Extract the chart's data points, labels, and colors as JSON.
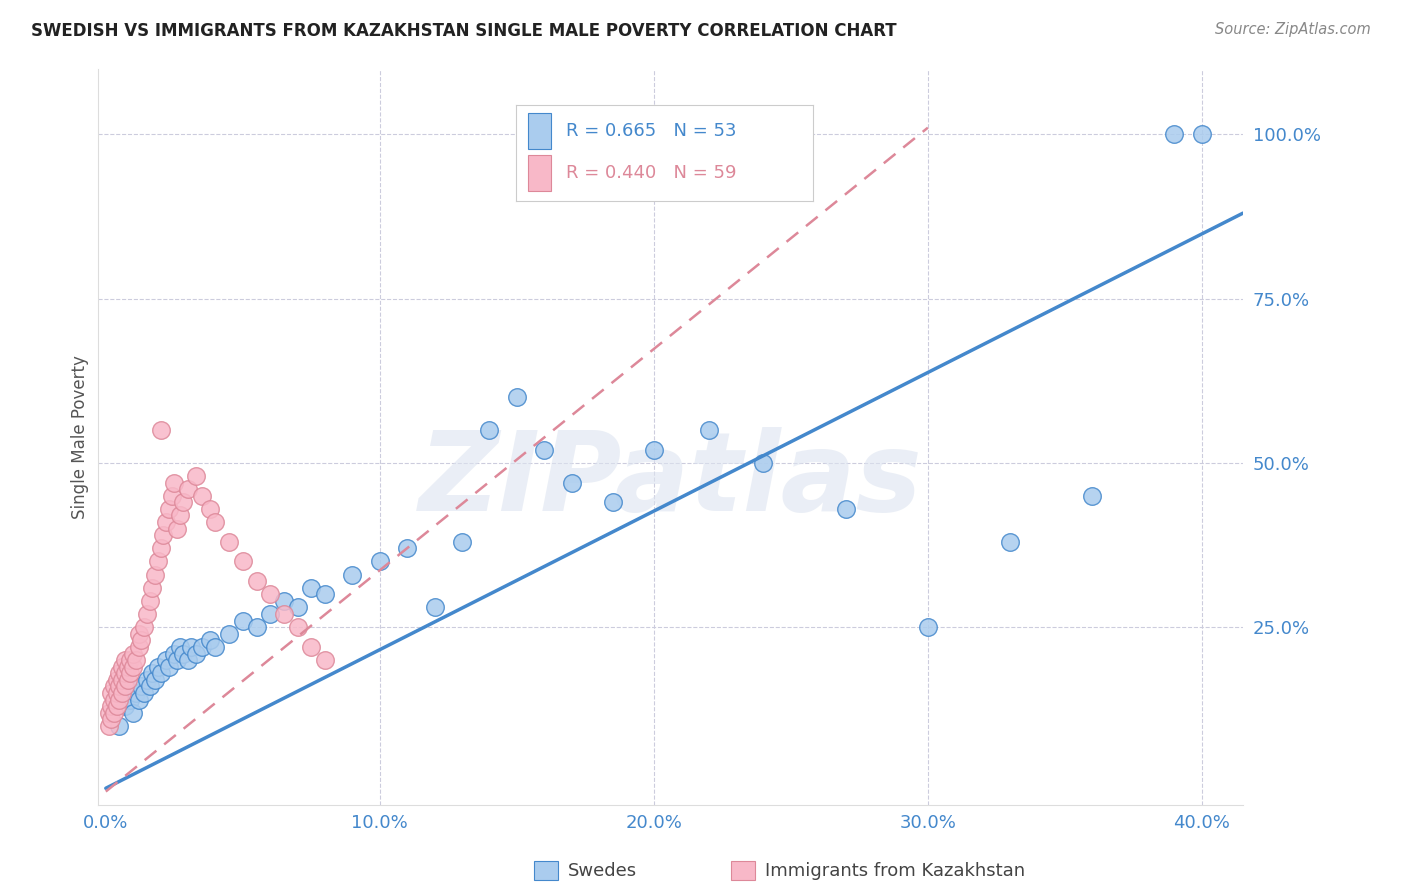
{
  "title": "SWEDISH VS IMMIGRANTS FROM KAZAKHSTAN SINGLE MALE POVERTY CORRELATION CHART",
  "source": "Source: ZipAtlas.com",
  "ylabel": "Single Male Poverty",
  "x_tick_labels": [
    "0.0%",
    "10.0%",
    "20.0%",
    "30.0%",
    "40.0%"
  ],
  "x_tick_vals": [
    0.0,
    0.1,
    0.2,
    0.3,
    0.4
  ],
  "y_tick_labels": [
    "25.0%",
    "50.0%",
    "75.0%",
    "100.0%"
  ],
  "y_tick_vals": [
    0.25,
    0.5,
    0.75,
    1.0
  ],
  "xlim": [
    -0.003,
    0.415
  ],
  "ylim": [
    -0.02,
    1.1
  ],
  "blue_R": 0.665,
  "blue_N": 53,
  "pink_R": 0.44,
  "pink_N": 59,
  "blue_scatter_color": "#aaccee",
  "pink_scatter_color": "#f8b8c8",
  "blue_line_color": "#4488cc",
  "pink_line_color": "#dd8899",
  "legend_label_blue": "Swedes",
  "legend_label_pink": "Immigrants from Kazakhstan",
  "watermark_text": "ZIPatlas",
  "title_color": "#222222",
  "source_color": "#888888",
  "axis_label_color": "#555555",
  "tick_color": "#4488cc",
  "grid_color": "#ccccdd",
  "blue_line_x0": 0.0,
  "blue_line_y0": 0.005,
  "blue_line_x1": 0.415,
  "blue_line_y1": 0.88,
  "pink_line_x0": 0.0,
  "pink_line_y0": 0.0,
  "pink_line_x1": 0.3,
  "pink_line_y1": 1.01,
  "swedes_x": [
    0.005,
    0.007,
    0.009,
    0.01,
    0.011,
    0.012,
    0.013,
    0.014,
    0.015,
    0.016,
    0.017,
    0.018,
    0.019,
    0.02,
    0.022,
    0.023,
    0.025,
    0.026,
    0.027,
    0.028,
    0.03,
    0.031,
    0.033,
    0.035,
    0.038,
    0.04,
    0.045,
    0.05,
    0.055,
    0.06,
    0.065,
    0.07,
    0.075,
    0.08,
    0.09,
    0.1,
    0.11,
    0.12,
    0.13,
    0.14,
    0.15,
    0.16,
    0.17,
    0.185,
    0.2,
    0.22,
    0.24,
    0.27,
    0.3,
    0.33,
    0.36,
    0.39,
    0.4
  ],
  "swedes_y": [
    0.1,
    0.13,
    0.14,
    0.12,
    0.15,
    0.14,
    0.16,
    0.15,
    0.17,
    0.16,
    0.18,
    0.17,
    0.19,
    0.18,
    0.2,
    0.19,
    0.21,
    0.2,
    0.22,
    0.21,
    0.2,
    0.22,
    0.21,
    0.22,
    0.23,
    0.22,
    0.24,
    0.26,
    0.25,
    0.27,
    0.29,
    0.28,
    0.31,
    0.3,
    0.33,
    0.35,
    0.37,
    0.28,
    0.38,
    0.55,
    0.6,
    0.52,
    0.47,
    0.44,
    0.52,
    0.55,
    0.5,
    0.43,
    0.25,
    0.38,
    0.45,
    1.0,
    1.0
  ],
  "kaz_x": [
    0.001,
    0.001,
    0.002,
    0.002,
    0.002,
    0.003,
    0.003,
    0.003,
    0.004,
    0.004,
    0.004,
    0.005,
    0.005,
    0.005,
    0.006,
    0.006,
    0.006,
    0.007,
    0.007,
    0.007,
    0.008,
    0.008,
    0.009,
    0.009,
    0.01,
    0.01,
    0.011,
    0.012,
    0.012,
    0.013,
    0.014,
    0.015,
    0.016,
    0.017,
    0.018,
    0.019,
    0.02,
    0.021,
    0.022,
    0.023,
    0.024,
    0.025,
    0.026,
    0.027,
    0.028,
    0.03,
    0.033,
    0.035,
    0.038,
    0.04,
    0.045,
    0.05,
    0.055,
    0.06,
    0.065,
    0.07,
    0.075,
    0.08,
    0.02
  ],
  "kaz_y": [
    0.1,
    0.12,
    0.11,
    0.13,
    0.15,
    0.12,
    0.14,
    0.16,
    0.13,
    0.15,
    0.17,
    0.14,
    0.16,
    0.18,
    0.15,
    0.17,
    0.19,
    0.16,
    0.18,
    0.2,
    0.17,
    0.19,
    0.18,
    0.2,
    0.19,
    0.21,
    0.2,
    0.22,
    0.24,
    0.23,
    0.25,
    0.27,
    0.29,
    0.31,
    0.33,
    0.35,
    0.37,
    0.39,
    0.41,
    0.43,
    0.45,
    0.47,
    0.4,
    0.42,
    0.44,
    0.46,
    0.48,
    0.45,
    0.43,
    0.41,
    0.38,
    0.35,
    0.32,
    0.3,
    0.27,
    0.25,
    0.22,
    0.2,
    0.55
  ]
}
